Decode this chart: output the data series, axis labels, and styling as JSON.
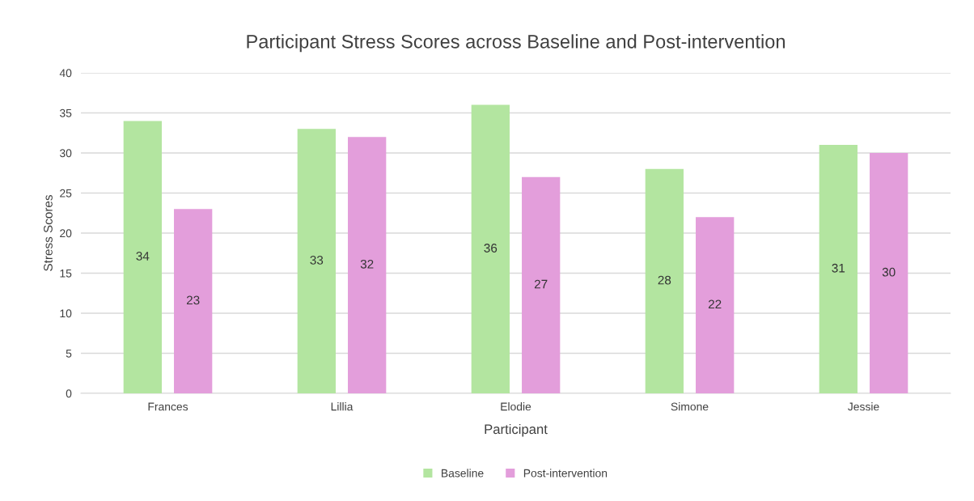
{
  "chart_data": {
    "type": "bar",
    "title": "Participant Stress Scores across Baseline and Post-intervention",
    "xlabel": "Participant",
    "ylabel": "Stress Scores",
    "categories": [
      "Frances",
      "Lillia",
      "Elodie",
      "Simone",
      "Jessie"
    ],
    "series": [
      {
        "name": "Baseline",
        "color": "#b3e5a0",
        "values": [
          34,
          33,
          36,
          28,
          31
        ]
      },
      {
        "name": "Post-intervention",
        "color": "#e39edb",
        "values": [
          23,
          32,
          27,
          22,
          30
        ]
      }
    ],
    "ylim": [
      0,
      40
    ],
    "yticks": [
      0,
      5,
      10,
      15,
      20,
      25,
      30,
      35,
      40
    ],
    "grid": "y",
    "legend": "bottom",
    "data_labels": true
  }
}
